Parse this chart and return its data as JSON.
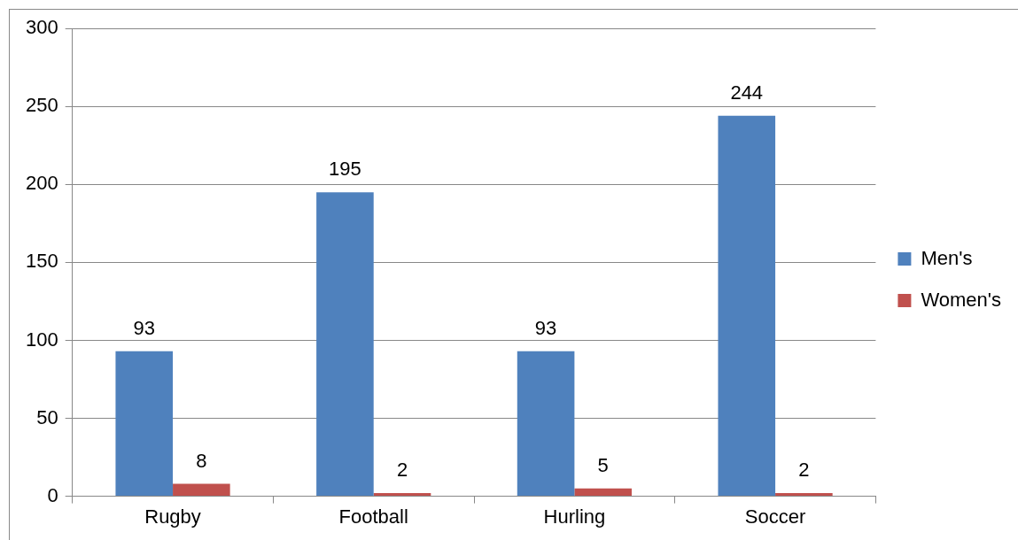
{
  "chart_data": {
    "type": "bar",
    "categories": [
      "Rugby",
      "Football",
      "Hurling",
      "Soccer"
    ],
    "series": [
      {
        "name": "Men's",
        "color": "#4f81bd",
        "values": [
          93,
          195,
          93,
          244
        ]
      },
      {
        "name": "Women's",
        "color": "#c0504d",
        "values": [
          8,
          2,
          5,
          2
        ]
      }
    ],
    "ylim": [
      0,
      300
    ],
    "yticks": [
      0,
      50,
      100,
      150,
      200,
      250,
      300
    ],
    "grid": "y",
    "legend": "right",
    "data_labels": true
  }
}
